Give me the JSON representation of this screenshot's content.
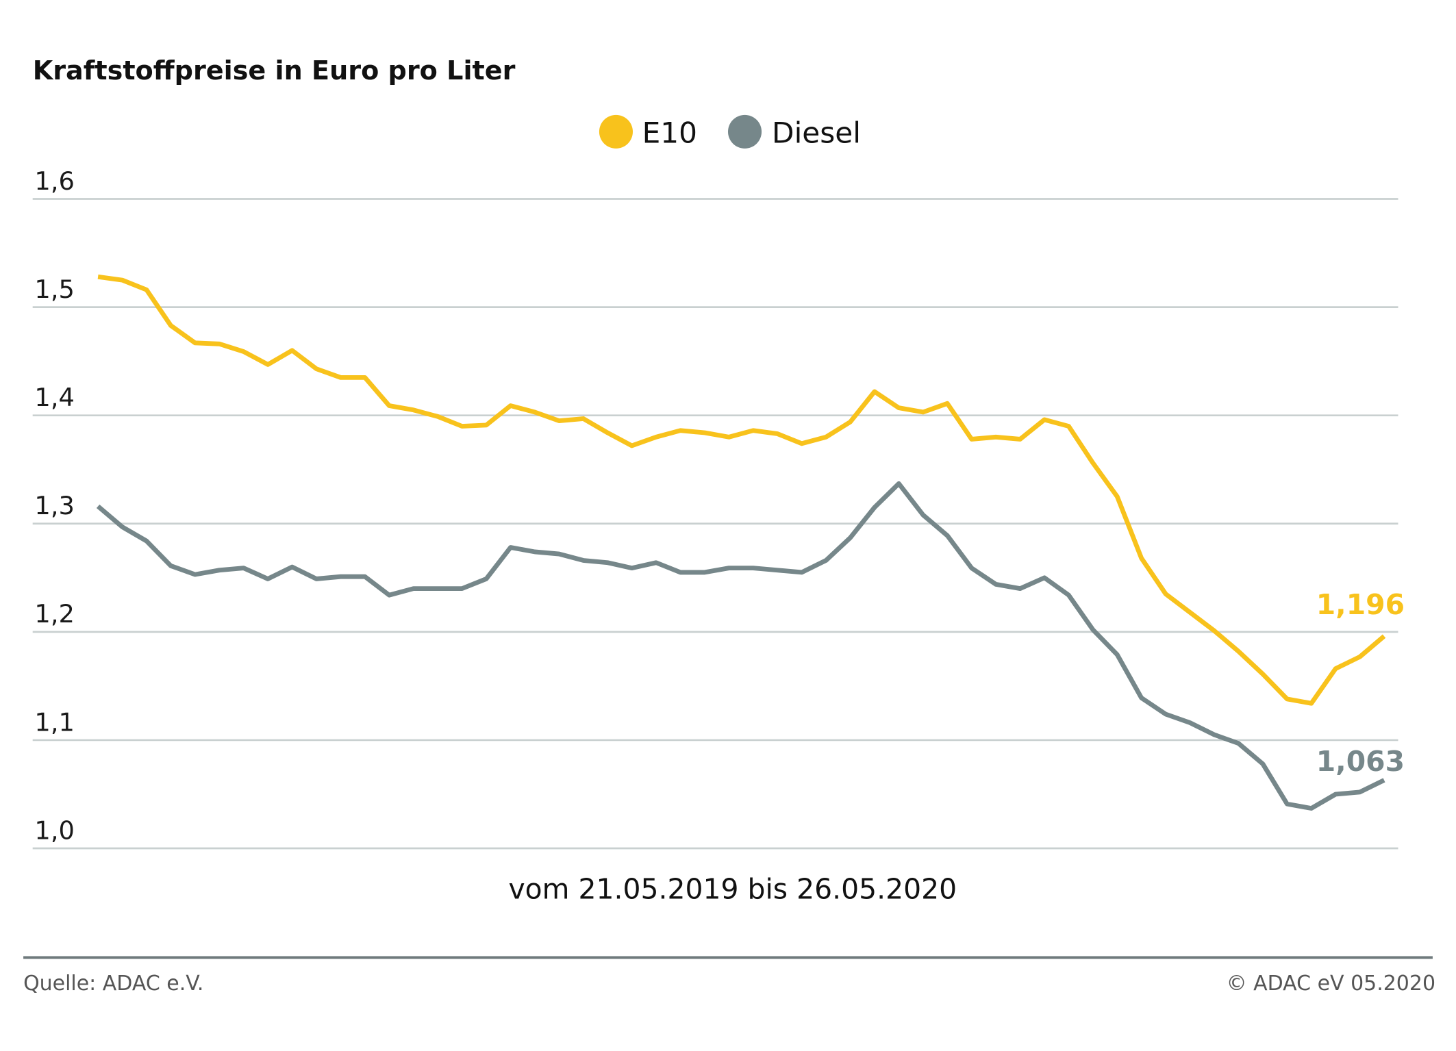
{
  "colors": {
    "e10": "#f8c21c",
    "diesel": "#76878a",
    "grid": "#c9d0d0",
    "rule": "#6f7a7c"
  },
  "chart_data": {
    "type": "line",
    "title": "Kraftstoffpreise in Euro pro Liter",
    "xlabel": "vom 21.05.2019 bis 26.05.2020",
    "ylabel": "",
    "ylim": [
      1.0,
      1.6
    ],
    "yticks": [
      1.0,
      1.1,
      1.2,
      1.3,
      1.4,
      1.5,
      1.6
    ],
    "ytick_labels": [
      "1,0",
      "1,1",
      "1,2",
      "1,3",
      "1,4",
      "1,5",
      "1,6"
    ],
    "grid": true,
    "legend_position": "top-center",
    "x_description": "weekly points, 21.05.2019 to 26.05.2020",
    "series": [
      {
        "name": "E10",
        "color_key": "e10",
        "end_label": "1,196",
        "values": [
          1.528,
          1.525,
          1.516,
          1.483,
          1.467,
          1.466,
          1.459,
          1.447,
          1.46,
          1.443,
          1.435,
          1.435,
          1.409,
          1.405,
          1.399,
          1.39,
          1.391,
          1.409,
          1.403,
          1.395,
          1.397,
          1.384,
          1.372,
          1.38,
          1.386,
          1.384,
          1.38,
          1.386,
          1.383,
          1.374,
          1.38,
          1.394,
          1.422,
          1.407,
          1.403,
          1.411,
          1.378,
          1.38,
          1.378,
          1.396,
          1.39,
          1.356,
          1.325,
          1.268,
          1.235,
          1.218,
          1.201,
          1.182,
          1.161,
          1.138,
          1.134,
          1.166,
          1.177,
          1.196
        ]
      },
      {
        "name": "Diesel",
        "color_key": "diesel",
        "end_label": "1,063",
        "values": [
          1.316,
          1.297,
          1.284,
          1.261,
          1.253,
          1.257,
          1.259,
          1.249,
          1.26,
          1.249,
          1.251,
          1.251,
          1.234,
          1.24,
          1.24,
          1.24,
          1.249,
          1.278,
          1.274,
          1.272,
          1.266,
          1.264,
          1.259,
          1.264,
          1.255,
          1.255,
          1.259,
          1.259,
          1.257,
          1.255,
          1.266,
          1.287,
          1.315,
          1.337,
          1.308,
          1.289,
          1.259,
          1.244,
          1.24,
          1.25,
          1.234,
          1.202,
          1.179,
          1.139,
          1.124,
          1.116,
          1.105,
          1.097,
          1.078,
          1.041,
          1.037,
          1.05,
          1.052,
          1.063
        ]
      }
    ]
  },
  "footer": {
    "source": "Quelle: ADAC e.V.",
    "copyright": "© ADAC eV 05.2020"
  }
}
